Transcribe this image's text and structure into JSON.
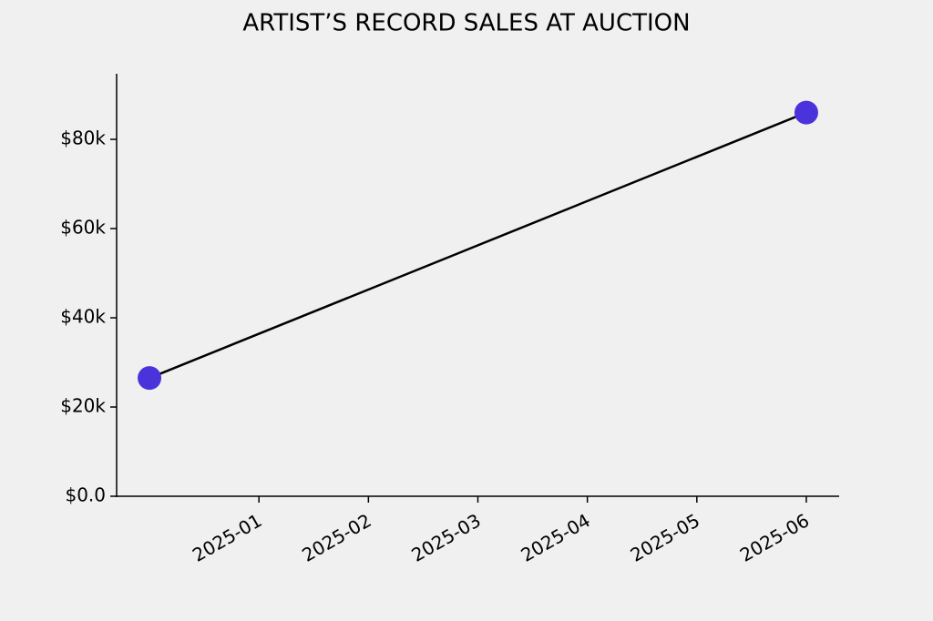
{
  "chart_data": {
    "type": "line",
    "title": "ARTIST’S RECORD SALES AT AUCTION",
    "x": [
      "2024-12",
      "2025-06"
    ],
    "series": [
      {
        "values": [
          26500,
          86000
        ],
        "color": "#000000",
        "marker_color": "#4a33db"
      }
    ],
    "ylim": [
      0,
      94700
    ],
    "yticks": [
      {
        "value": 0,
        "label": "$0.0"
      },
      {
        "value": 20000,
        "label": "$20k"
      },
      {
        "value": 40000,
        "label": "$40k"
      },
      {
        "value": 60000,
        "label": "$60k"
      },
      {
        "value": 80000,
        "label": "$80k"
      }
    ],
    "xticks": [
      "2025-01",
      "2025-02",
      "2025-03",
      "2025-04",
      "2025-05",
      "2025-06"
    ],
    "grid": false
  }
}
